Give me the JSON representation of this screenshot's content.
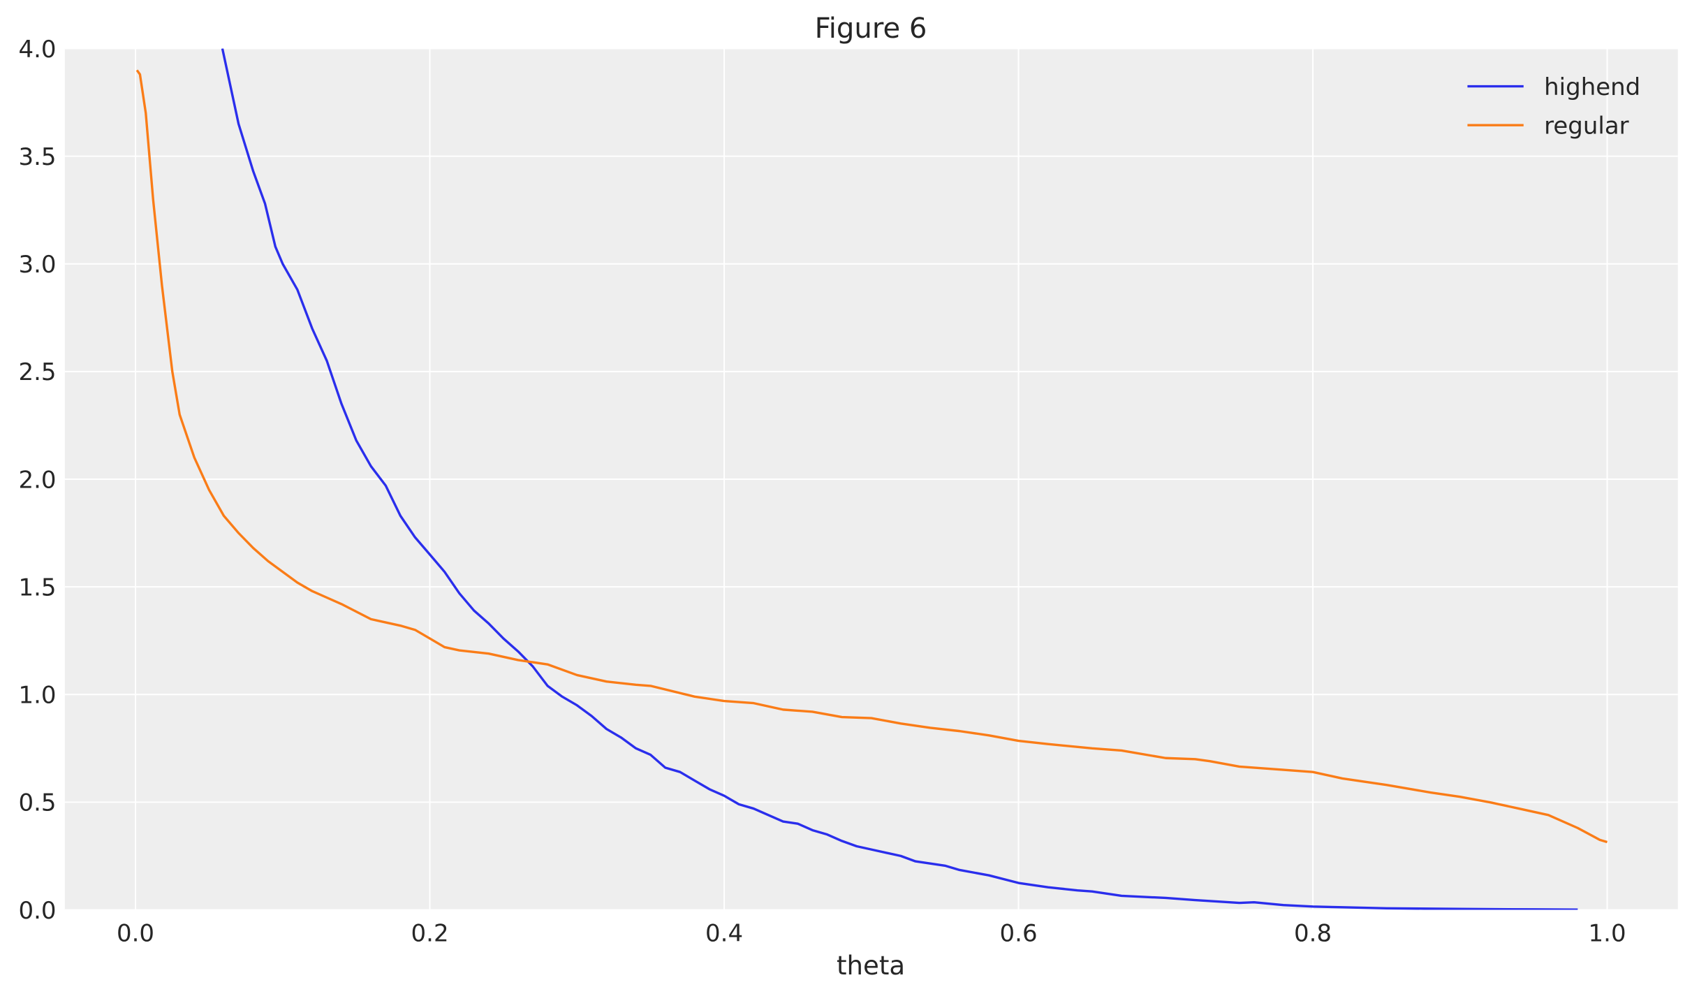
{
  "chart_data": {
    "type": "line",
    "title": "Figure 6",
    "xlabel": "theta",
    "ylabel": "",
    "xlim": [
      -0.048,
      1.048
    ],
    "ylim": [
      0,
      4.0
    ],
    "xticks": [
      0.0,
      0.2,
      0.4,
      0.6,
      0.8,
      1.0
    ],
    "xtick_labels": [
      "0.0",
      "0.2",
      "0.4",
      "0.6",
      "0.8",
      "1.0"
    ],
    "yticks": [
      0.0,
      0.5,
      1.0,
      1.5,
      2.0,
      2.5,
      3.0,
      3.5,
      4.0
    ],
    "ytick_labels": [
      "0.0",
      "0.5",
      "1.0",
      "1.5",
      "2.0",
      "2.5",
      "3.0",
      "3.5",
      "4.0"
    ],
    "grid": true,
    "legend_placement": "top-right",
    "background_color": "#eeeeee",
    "series": [
      {
        "name": "highend",
        "color": "#2a2eec",
        "x": [
          0.059,
          0.07,
          0.08,
          0.088,
          0.095,
          0.1,
          0.11,
          0.12,
          0.13,
          0.14,
          0.15,
          0.16,
          0.17,
          0.18,
          0.19,
          0.2,
          0.21,
          0.22,
          0.23,
          0.24,
          0.25,
          0.26,
          0.27,
          0.28,
          0.29,
          0.3,
          0.31,
          0.32,
          0.33,
          0.34,
          0.35,
          0.36,
          0.37,
          0.38,
          0.39,
          0.4,
          0.41,
          0.42,
          0.43,
          0.44,
          0.45,
          0.46,
          0.47,
          0.48,
          0.49,
          0.5,
          0.52,
          0.53,
          0.55,
          0.56,
          0.58,
          0.6,
          0.62,
          0.64,
          0.65,
          0.67,
          0.7,
          0.72,
          0.75,
          0.76,
          0.78,
          0.8,
          0.82,
          0.85,
          0.9,
          0.95,
          0.98
        ],
        "y": [
          4.0,
          3.65,
          3.43,
          3.28,
          3.08,
          3.0,
          2.88,
          2.7,
          2.55,
          2.35,
          2.18,
          2.06,
          1.97,
          1.83,
          1.73,
          1.65,
          1.57,
          1.47,
          1.39,
          1.33,
          1.26,
          1.2,
          1.13,
          1.04,
          0.99,
          0.95,
          0.9,
          0.84,
          0.8,
          0.75,
          0.72,
          0.66,
          0.64,
          0.6,
          0.56,
          0.53,
          0.49,
          0.47,
          0.44,
          0.41,
          0.4,
          0.37,
          0.35,
          0.32,
          0.295,
          0.28,
          0.25,
          0.225,
          0.205,
          0.185,
          0.16,
          0.125,
          0.105,
          0.09,
          0.085,
          0.065,
          0.055,
          0.045,
          0.032,
          0.035,
          0.022,
          0.015,
          0.012,
          0.007,
          0.004,
          0.002,
          0.001
        ]
      },
      {
        "name": "regular",
        "color": "#fa7c17",
        "x": [
          0.001,
          0.003,
          0.007,
          0.012,
          0.018,
          0.025,
          0.03,
          0.04,
          0.05,
          0.06,
          0.07,
          0.08,
          0.09,
          0.1,
          0.11,
          0.12,
          0.13,
          0.14,
          0.15,
          0.16,
          0.17,
          0.18,
          0.19,
          0.2,
          0.21,
          0.22,
          0.24,
          0.26,
          0.28,
          0.3,
          0.32,
          0.34,
          0.35,
          0.38,
          0.4,
          0.42,
          0.44,
          0.46,
          0.48,
          0.5,
          0.52,
          0.54,
          0.56,
          0.58,
          0.6,
          0.62,
          0.65,
          0.67,
          0.7,
          0.72,
          0.73,
          0.75,
          0.78,
          0.8,
          0.82,
          0.85,
          0.88,
          0.9,
          0.92,
          0.94,
          0.96,
          0.98,
          0.995,
          1.0
        ],
        "y": [
          3.9,
          3.88,
          3.7,
          3.3,
          2.9,
          2.5,
          2.3,
          2.1,
          1.95,
          1.83,
          1.75,
          1.68,
          1.62,
          1.57,
          1.52,
          1.48,
          1.45,
          1.42,
          1.385,
          1.35,
          1.335,
          1.32,
          1.3,
          1.26,
          1.22,
          1.205,
          1.19,
          1.16,
          1.14,
          1.09,
          1.06,
          1.045,
          1.04,
          0.99,
          0.97,
          0.96,
          0.93,
          0.92,
          0.895,
          0.89,
          0.865,
          0.845,
          0.83,
          0.81,
          0.785,
          0.77,
          0.75,
          0.74,
          0.705,
          0.7,
          0.69,
          0.665,
          0.65,
          0.64,
          0.61,
          0.58,
          0.545,
          0.525,
          0.5,
          0.47,
          0.44,
          0.38,
          0.325,
          0.315
        ]
      }
    ]
  }
}
